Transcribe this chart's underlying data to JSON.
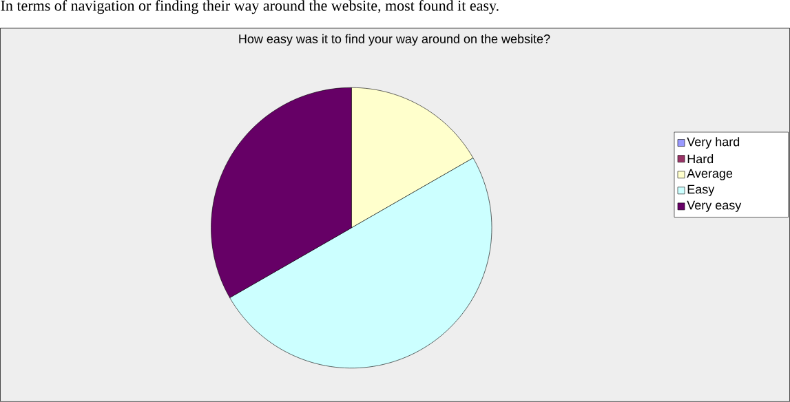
{
  "chart_data": {
    "type": "pie",
    "title": "How easy was it to find your way around on the website?",
    "annotations": [
      "In terms of navigation or finding their way around the website, most found it easy."
    ],
    "categories": [
      "Very hard",
      "Hard",
      "Average",
      "Easy",
      "Very easy"
    ],
    "values": [
      0,
      0,
      16.7,
      50,
      33.3
    ],
    "colors": [
      "#9999ff",
      "#993366",
      "#ffffcc",
      "#ccffff",
      "#660066"
    ],
    "legend": "right"
  }
}
